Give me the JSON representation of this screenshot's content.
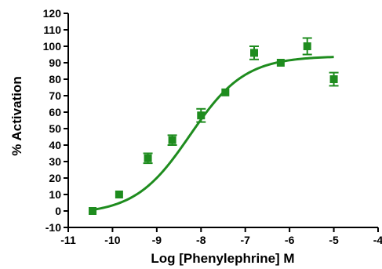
{
  "chart_data": {
    "type": "scatter",
    "title": "",
    "xlabel": "Log [Phenylephrine] M",
    "ylabel": "% Activation",
    "xlim": [
      -11,
      -4
    ],
    "ylim": [
      -10,
      120
    ],
    "x_ticks": [
      -11,
      -10,
      -9,
      -8,
      -7,
      -6,
      -5,
      -4
    ],
    "y_ticks": [
      -10,
      0,
      10,
      20,
      30,
      40,
      50,
      60,
      70,
      80,
      90,
      100,
      110,
      120
    ],
    "grid": false,
    "color": "#1e8c1e",
    "series": [
      {
        "points": [
          {
            "x": -10.45,
            "y": 0,
            "err": 0
          },
          {
            "x": -9.85,
            "y": 10,
            "err": 0
          },
          {
            "x": -9.2,
            "y": 32,
            "err": 3
          },
          {
            "x": -8.65,
            "y": 43,
            "err": 3
          },
          {
            "x": -8.0,
            "y": 58,
            "err": 4
          },
          {
            "x": -7.45,
            "y": 72,
            "err": 0
          },
          {
            "x": -6.8,
            "y": 96,
            "err": 4
          },
          {
            "x": -6.2,
            "y": 90,
            "err": 0
          },
          {
            "x": -5.6,
            "y": 100,
            "err": 5
          },
          {
            "x": -5.0,
            "y": 80,
            "err": 4
          }
        ],
        "fit": {
          "bottom": -2,
          "top": 94,
          "logEC50": -8.25,
          "hill": 0.7,
          "x_range": [
            -10.45,
            -5.0
          ]
        }
      }
    ]
  }
}
